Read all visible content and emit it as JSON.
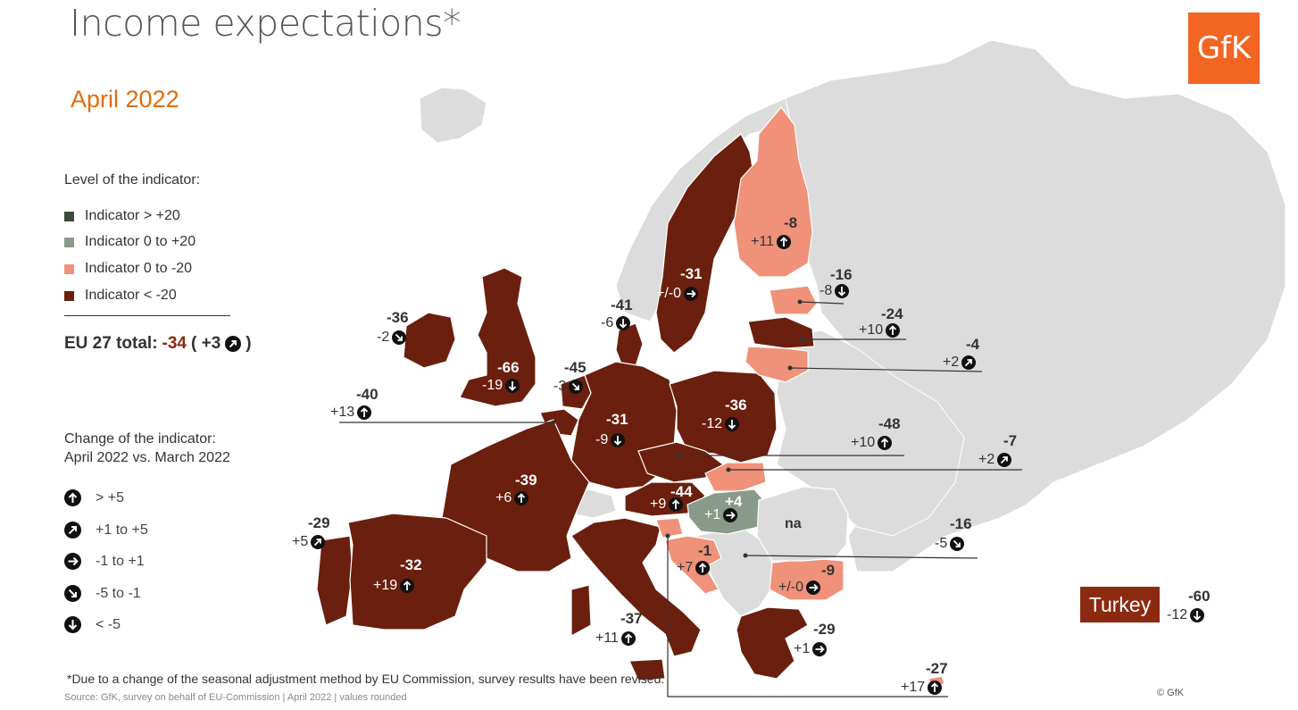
{
  "title": "Income expectations*",
  "subtitle": "April 2022",
  "legend_level": {
    "heading": "Level of the indicator:",
    "items": [
      {
        "label": "Indicator > +20",
        "color": "#3b4a3c"
      },
      {
        "label": "Indicator 0 to +20",
        "color": "#8a9a8a"
      },
      {
        "label": "Indicator 0 to -20",
        "color": "#f0917a"
      },
      {
        "label": "Indicator < -20",
        "color": "#6b1f0e"
      }
    ]
  },
  "eu_total": {
    "label": "EU 27 total:",
    "value": "-34",
    "open": "( +3",
    "close": ")",
    "arrow": "up-right-arrow-icon"
  },
  "legend_change": {
    "heading_line1": "Change of the indicator:",
    "heading_line2": "April 2022 vs. March 2022",
    "items": [
      {
        "label": "> +5",
        "icon": "up-arrow-icon"
      },
      {
        "label": "+1 to +5",
        "icon": "up-right-arrow-icon"
      },
      {
        "label": "-1 to +1",
        "icon": "right-arrow-icon"
      },
      {
        "label": "-5 to -1",
        "icon": "down-right-arrow-icon"
      },
      {
        "label": "< -5",
        "icon": "down-arrow-icon"
      }
    ]
  },
  "countries": [
    {
      "key": "finland",
      "value": "-8",
      "change": "+11",
      "arrow": "up"
    },
    {
      "key": "sweden",
      "value": "-31",
      "change": "+/-0",
      "arrow": "right"
    },
    {
      "key": "estonia",
      "value": "-16",
      "change": "-8",
      "arrow": "down"
    },
    {
      "key": "denmark",
      "value": "-41",
      "change": "-6",
      "arrow": "down"
    },
    {
      "key": "latvia",
      "value": "-24",
      "change": "+10",
      "arrow": "up"
    },
    {
      "key": "lithuania",
      "value": "-4",
      "change": "+2",
      "arrow": "upright"
    },
    {
      "key": "ireland",
      "value": "-36",
      "change": "-2",
      "arrow": "downright"
    },
    {
      "key": "uk",
      "value": "-66",
      "change": "-19",
      "arrow": "down"
    },
    {
      "key": "netherlands",
      "value": "-45",
      "change": "-3",
      "arrow": "downright"
    },
    {
      "key": "belgium",
      "value": "-40",
      "change": "+13",
      "arrow": "up"
    },
    {
      "key": "germany",
      "value": "-31",
      "change": "-9",
      "arrow": "down"
    },
    {
      "key": "poland",
      "value": "-36",
      "change": "-12",
      "arrow": "down"
    },
    {
      "key": "czechia",
      "value": "-48",
      "change": "+10",
      "arrow": "up"
    },
    {
      "key": "slovakia",
      "value": "-7",
      "change": "+2",
      "arrow": "upright"
    },
    {
      "key": "france",
      "value": "-39",
      "change": "+6",
      "arrow": "up"
    },
    {
      "key": "austria",
      "value": "-44",
      "change": "+9",
      "arrow": "up"
    },
    {
      "key": "hungary",
      "value": "+4",
      "change": "+1",
      "arrow": "right"
    },
    {
      "key": "romania",
      "value": "na"
    },
    {
      "key": "slovenia",
      "value": "-16",
      "change": "-5",
      "arrow": "downright"
    },
    {
      "key": "portugal",
      "value": "-29",
      "change": "+5",
      "arrow": "upright"
    },
    {
      "key": "spain",
      "value": "-32",
      "change": "+19",
      "arrow": "up"
    },
    {
      "key": "croatia",
      "value": "-1",
      "change": "+7",
      "arrow": "up"
    },
    {
      "key": "bulgaria",
      "value": "-9",
      "change": "+/-0",
      "arrow": "right"
    },
    {
      "key": "italy",
      "value": "-37",
      "change": "+11",
      "arrow": "up"
    },
    {
      "key": "greece",
      "value": "-29",
      "change": "+1",
      "arrow": "right"
    },
    {
      "key": "cyprus",
      "value": "-27",
      "change": "+17",
      "arrow": "up"
    },
    {
      "key": "turkey",
      "label": "Turkey",
      "value": "-60",
      "change": "-12",
      "arrow": "down"
    }
  ],
  "logo_text": "GfK",
  "footnote": "*Due to a change of the seasonal adjustment method by EU Commission, survey results have been revised.",
  "source": "Source: GfK, survey on behalf of EU-Commission | April 2022 | values rounded",
  "copyright": "© GfK"
}
